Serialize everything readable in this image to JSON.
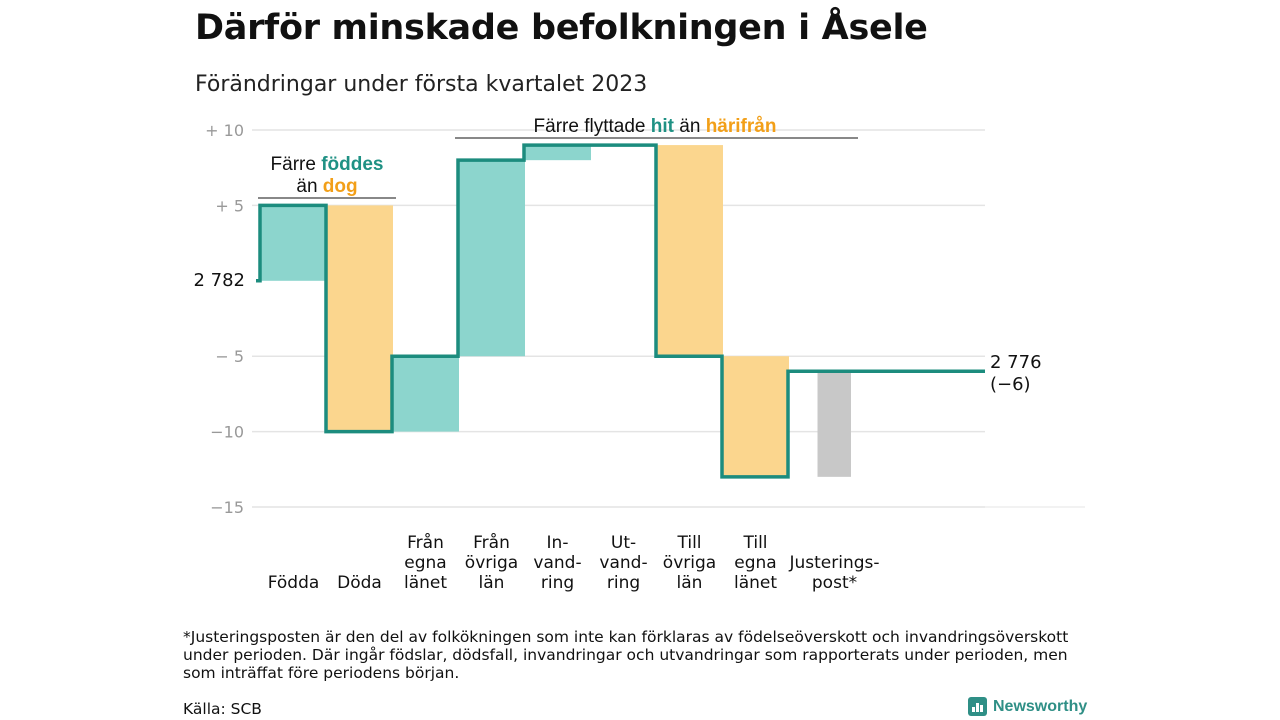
{
  "title": "Därför minskade befolkningen i Åsele",
  "subtitle": "Förändringar under första kvartalet 2023",
  "footnote": "*Justeringsposten är den del av folkökningen som inte kan förklaras av födelseöverskott och invandringsöverskott under perioden. Där ingår födslar, dödsfall, invandringar och utvandringar som rapporterats under perioden, men som inträffat före periodens början.",
  "source": "Källa: SCB",
  "brand": {
    "name": "Newsworthy",
    "color": "#2f8f86"
  },
  "colors": {
    "increase": "#8cd5cd",
    "decrease": "#fbd68e",
    "adjustment": "#c8c8c8",
    "line": "#1c8c7e",
    "grid": "#e4e4e4",
    "teal_text": "#1f9184",
    "orange_text": "#f29f18"
  },
  "annotations": {
    "births": {
      "line1_pre": "Färre ",
      "line1_hl": "föddes",
      "line2_pre": "än ",
      "line2_hl": "dog"
    },
    "migration": {
      "pre": "Färre flyttade ",
      "hl1": "hit",
      "mid": " än ",
      "hl2": "härifrån"
    }
  },
  "chart_data": {
    "type": "waterfall",
    "title": "Därför minskade befolkningen i Åsele",
    "subtitle": "Förändringar under första kvartalet 2023",
    "start_value": 2782,
    "start_label": "2 782",
    "end_value": 2776,
    "end_label": "2 776",
    "end_change_label": "(−6)",
    "ylim": [
      -15,
      10
    ],
    "yticks": [
      10,
      5,
      -5,
      -10,
      -15
    ],
    "ytick_labels": [
      "+ 10",
      "+ 5",
      "− 5",
      "−10",
      "−15"
    ],
    "grid": true,
    "steps": [
      {
        "category": "Födda",
        "label_lines": [
          "Födda"
        ],
        "change": 5,
        "kind": "increase"
      },
      {
        "category": "Döda",
        "label_lines": [
          "Döda"
        ],
        "change": -15,
        "kind": "decrease"
      },
      {
        "category": "Från egna länet",
        "label_lines": [
          "Från",
          "egna",
          "länet"
        ],
        "change": 5,
        "kind": "increase"
      },
      {
        "category": "Från övriga län",
        "label_lines": [
          "Från",
          "övriga",
          "län"
        ],
        "change": 13,
        "kind": "increase"
      },
      {
        "category": "Invandring",
        "label_lines": [
          "In-",
          "vand-",
          "ring"
        ],
        "change": 1,
        "kind": "increase"
      },
      {
        "category": "Utvandring",
        "label_lines": [
          "Ut-",
          "vand-",
          "ring"
        ],
        "change": 0,
        "kind": "decrease"
      },
      {
        "category": "Till övriga län",
        "label_lines": [
          "Till",
          "övriga",
          "län"
        ],
        "change": -14,
        "kind": "decrease"
      },
      {
        "category": "Till egna länet",
        "label_lines": [
          "Till",
          "egna",
          "länet"
        ],
        "change": -8,
        "kind": "decrease"
      },
      {
        "category": "Justeringspost*",
        "label_lines": [
          "Justerings-",
          "post*"
        ],
        "change": 7,
        "kind": "adjustment"
      }
    ]
  }
}
